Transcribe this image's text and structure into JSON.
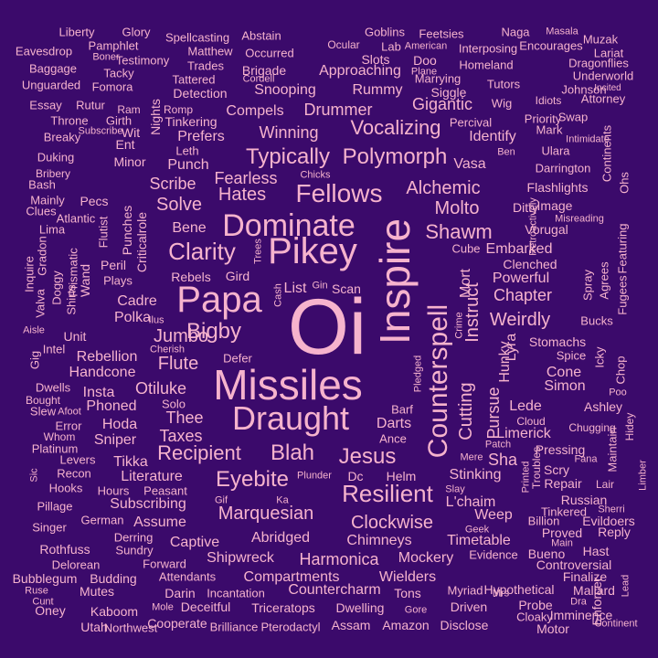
{
  "colors": {
    "background": "#3b0a6b",
    "word": "#f6b3cd"
  },
  "words": [
    "Oi",
    "Missiles",
    "Inspire",
    "Pikey",
    "Papa",
    "Dominate",
    "Draught",
    "Counterspell",
    "Fellows",
    "Clarity",
    "Polymorph",
    "Resilient",
    "Typically",
    "Bigby",
    "Vocalizing",
    "Eyebite",
    "Jesus",
    "Blah",
    "Recipient",
    "Shawm",
    "Instruct",
    "Alchemic",
    "Jumbo",
    "Flute",
    "Cutting",
    "Marquesian",
    "Clockwise",
    "Chimneys",
    "Harmonica",
    "Countercharm",
    "Compartments",
    "Weirdly",
    "Hates",
    "Solve",
    "Scribe",
    "Fearless",
    "Winning",
    "Molto",
    "Drummer",
    "Rummy",
    "Snooping",
    "Approaching",
    "Gigantic",
    "Compels",
    "Prefers",
    "Hunky",
    "Pursue",
    "Lyra",
    "Chapter",
    "Powerful",
    "Embarked",
    "Otiluke",
    "Thee",
    "Taxes",
    "Rebellion",
    "Handcone",
    "Phoned",
    "Stinking",
    "Sha",
    "Limerick",
    "Abridged",
    "Shipwreck",
    "Mockery",
    "Wielders",
    "Timetable",
    "L'chaim",
    "Weep",
    "Subscribing",
    "Literature",
    "Assume",
    "Captive",
    "Sniper",
    "Hoda",
    "Cadre",
    "Polka",
    "Bene",
    "Rebels",
    "Gird",
    "Punches",
    "Criticalrole",
    "Mort",
    "Cube",
    "Clenched",
    "Vorugal",
    "Image",
    "Ditty",
    "Flashlights",
    "Darrington",
    "Identify",
    "Vasa",
    "Stomachs",
    "Cone",
    "Simon",
    "Ashley",
    "Lede",
    "Pressing",
    "Scry",
    "Repair",
    "Russian",
    "Tinkered",
    "Evildoers",
    "Billion",
    "Proved",
    "Reply",
    "Evidence",
    "Bueno",
    "Hast",
    "Controversial",
    "Finalize",
    "Mallard",
    "Enforcer",
    "Imminence",
    "Motor",
    "Probe",
    "Cloaky",
    "Hypothetical",
    "Driven",
    "Myriad",
    "Tons",
    "Amazon",
    "Disclose",
    "Assam",
    "Brilliance",
    "Pterodactyl",
    "Triceratops",
    "Dwelling",
    "Deceitful",
    "Cooperate",
    "Kaboom",
    "Utah",
    "Northwest",
    "Darin",
    "Incantation",
    "Attendants",
    "Budding",
    "Mutes",
    "Oney",
    "Bubblegum",
    "Delorean",
    "Rothfuss",
    "Sundry",
    "Forward",
    "Derring",
    "Singer",
    "German",
    "Pillage",
    "Hooks",
    "Hours",
    "Peasant",
    "Recon",
    "Levers",
    "Platinum",
    "Whom",
    "Error",
    "Slew",
    "Bought",
    "Dwells",
    "Gig",
    "Intel",
    "Aisle",
    "Valva",
    "Inquire",
    "Gradon",
    "Doggy",
    "Shirts",
    "Prismatic",
    "Wand",
    "Peril",
    "Plays",
    "Flutist",
    "Mainly",
    "Pecs",
    "Clues",
    "Atlantic",
    "Lima",
    "Bash",
    "Bribery",
    "Duking",
    "Breaky",
    "Throne",
    "Girth",
    "Essay",
    "Rutur",
    "Ram",
    "Romp",
    "Unguarded",
    "Fomora",
    "Baggage",
    "Tacky",
    "Eavesdrop",
    "Pamphlet",
    "Liberty",
    "Glory",
    "Boner",
    "Testimony",
    "Spellcasting",
    "Abstain",
    "Matthew",
    "Occurred",
    "Trades",
    "Brigade",
    "Tattered",
    "Cordell",
    "Detection",
    "Goblins",
    "Ocular",
    "Lab",
    "American",
    "Feetsies",
    "Naga",
    "Masala",
    "Muzak",
    "Lariat",
    "Encourages",
    "Dragonflies",
    "Underworld",
    "Interposing",
    "Homeland",
    "Slots",
    "Doo",
    "Plane",
    "Marrying",
    "Siggle",
    "Tutors",
    "Johnson",
    "Incited",
    "Attorney",
    "Idiots",
    "Wig",
    "Percival",
    "Priority",
    "Swap",
    "Mark",
    "Intimidate",
    "Ulara",
    "Ben",
    "Retroactively",
    "Continents",
    "Misreading",
    "Featuring",
    "Ohs",
    "Fugees",
    "Agrees",
    "Spray",
    "Bucks",
    "Spice",
    "Icky",
    "Chop",
    "Poo",
    "Chugging",
    "Maintain",
    "Limber",
    "Hidey",
    "Fana",
    "Lair",
    "Sherri",
    "Main",
    "Lead",
    "Continent",
    "Dra",
    "Mrs",
    "Gore",
    "Mole",
    "Ruse",
    "Cunt",
    "Patch",
    "Cloud",
    "Printed",
    "Troubles",
    "Slay",
    "Mere",
    "Geek",
    "Helm",
    "Dc",
    "Plunder",
    "Gif",
    "Ka",
    "Tikka",
    "Sic",
    "Afoot",
    "Barf",
    "Darts",
    "Ance",
    "Pledged",
    "Crime",
    "Solo",
    "Cherish",
    "Defer",
    "Insta",
    "Unit",
    "Ilus",
    "List",
    "Gin",
    "Scan",
    "Cash",
    "Trees",
    "Chicks",
    "Leth",
    "Punch",
    "Tinkering",
    "Minor",
    "Ent",
    "Wit",
    "Subscribe",
    "Nights"
  ]
}
